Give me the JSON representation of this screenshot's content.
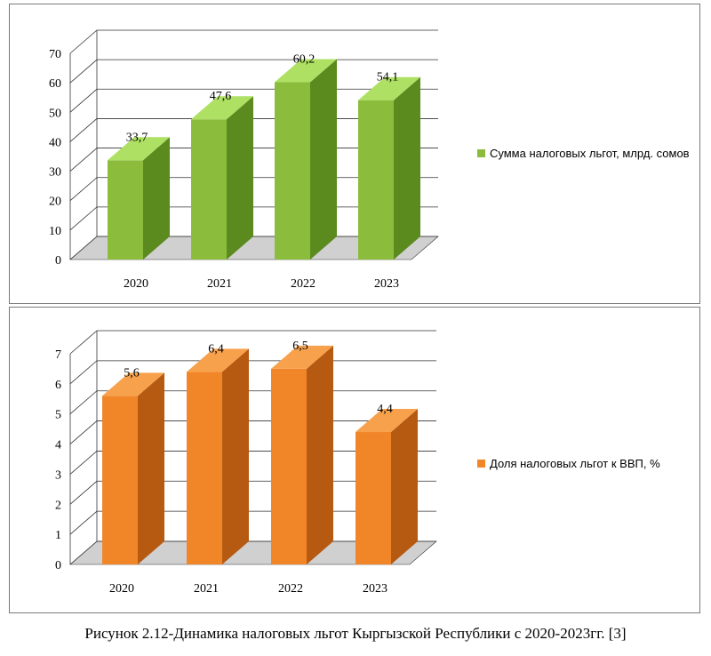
{
  "caption": "Рисунок 2.12-Динамика налоговых льгот Кыргызской Республики с 2020-2023гг. [3]",
  "colors": {
    "green_front": "#8cbc3c",
    "green_side": "#5b8a1f",
    "green_top": "#aee063",
    "orange_front": "#f08628",
    "orange_side": "#b65a12",
    "orange_top": "#f7a14d",
    "grid": "#333333",
    "floor": "#d0d0d0"
  },
  "chart_data": [
    {
      "type": "bar",
      "categories": [
        "2020",
        "2021",
        "2022",
        "2023"
      ],
      "series": [
        {
          "name": "Сумма налоговых льгот, млрд. сомов",
          "values": [
            33.7,
            47.6,
            60.2,
            54.1
          ]
        }
      ],
      "data_labels": [
        "33,7",
        "47,6",
        "60,2",
        "54,1"
      ],
      "yticks": [
        "0",
        "10",
        "20",
        "30",
        "40",
        "50",
        "60",
        "70"
      ],
      "ylim": [
        0,
        70
      ],
      "legend_position": "right",
      "grid": true,
      "style": "3d-column"
    },
    {
      "type": "bar",
      "categories": [
        "2020",
        "2021",
        "2022",
        "2023"
      ],
      "series": [
        {
          "name": "Доля налоговых льгот к ВВП, %",
          "values": [
            5.6,
            6.4,
            6.5,
            4.4
          ]
        }
      ],
      "data_labels": [
        "5,6",
        "6,4",
        "6,5",
        "4,4"
      ],
      "yticks": [
        "0",
        "1",
        "2",
        "3",
        "4",
        "5",
        "6",
        "7"
      ],
      "ylim": [
        0,
        7
      ],
      "legend_position": "right",
      "grid": true,
      "style": "3d-column"
    }
  ]
}
